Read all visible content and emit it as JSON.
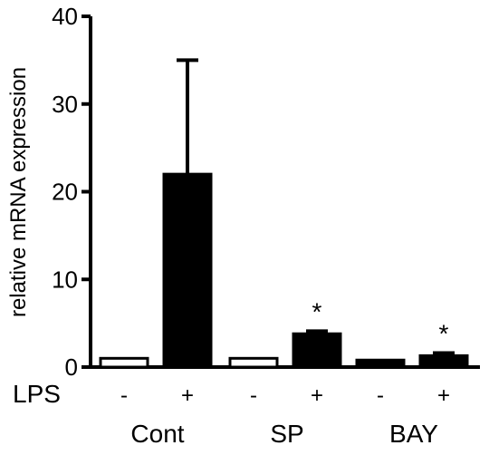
{
  "chart_data": {
    "type": "bar",
    "ylabel": "relative mRNA expression",
    "ylim": [
      0,
      40
    ],
    "yticks": [
      "0",
      "10",
      "20",
      "30",
      "40"
    ],
    "row_label": "LPS",
    "bars": [
      {
        "value": 1.0,
        "error": 0,
        "lps": "-",
        "filled": false,
        "star": ""
      },
      {
        "value": 22.0,
        "error": 13.0,
        "lps": "+",
        "filled": true,
        "star": ""
      },
      {
        "value": 1.0,
        "error": 0,
        "lps": "-",
        "filled": false,
        "star": ""
      },
      {
        "value": 3.8,
        "error": 0.3,
        "lps": "+",
        "filled": true,
        "star": "*"
      },
      {
        "value": 0.8,
        "error": 0,
        "lps": "-",
        "filled": true,
        "star": ""
      },
      {
        "value": 1.3,
        "error": 0.3,
        "lps": "+",
        "filled": true,
        "star": "*"
      }
    ],
    "groups": [
      "Cont",
      "SP",
      "BAY"
    ],
    "grid": false,
    "colors": {
      "bar": "#000000",
      "empty_bar": "#ffffff",
      "axis": "#000000"
    }
  }
}
